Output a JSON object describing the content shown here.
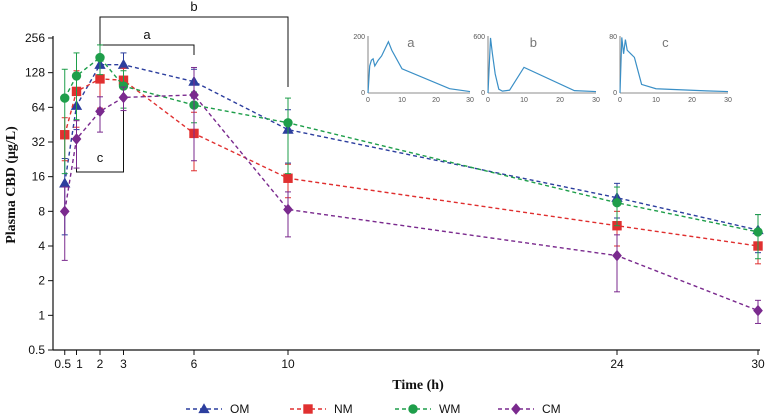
{
  "chart_data": {
    "type": "line",
    "xlabel": "Time (h)",
    "ylabel": "Plasma CBD (μg/L)",
    "yscale": "log2",
    "ylim": [
      0.5,
      256
    ],
    "xlim": [
      0,
      30
    ],
    "x_ticks": [
      0.5,
      1,
      2,
      3,
      6,
      10,
      24,
      30
    ],
    "x_tick_labels": [
      "0.5",
      "1",
      "2",
      "3",
      "6",
      "10",
      "24",
      "30"
    ],
    "y_ticks": [
      0.5,
      1,
      2,
      4,
      8,
      16,
      32,
      64,
      128,
      256
    ],
    "y_tick_labels": [
      "0.5",
      "1",
      "2",
      "4",
      "8",
      "16",
      "32",
      "64",
      "128",
      "256"
    ],
    "legend_position": "bottom",
    "series": [
      {
        "name": "OM",
        "color": "#2c3e9e",
        "marker": "triangle",
        "x": [
          0.5,
          1,
          2,
          3,
          6,
          10,
          24,
          30
        ],
        "y": [
          14,
          66,
          150,
          150,
          107,
          41,
          10.5,
          5.5
        ],
        "err": [
          9,
          25,
          30,
          40,
          30,
          20,
          3.5,
          2
        ]
      },
      {
        "name": "NM",
        "color": "#e03030",
        "marker": "square",
        "x": [
          0.5,
          1,
          2,
          3,
          6,
          10,
          24,
          30
        ],
        "y": [
          37,
          88,
          113,
          110,
          38,
          15.5,
          6,
          4
        ],
        "err": [
          15,
          45,
          50,
          30,
          20,
          5,
          2,
          1.2
        ]
      },
      {
        "name": "WM",
        "color": "#1e9e4a",
        "marker": "circle",
        "x": [
          0.5,
          1,
          2,
          3,
          6,
          10,
          24,
          30
        ],
        "y": [
          77,
          120,
          173,
          98,
          67,
          47,
          9.5,
          5.3
        ],
        "err": [
          60,
          70,
          50,
          35,
          20,
          30,
          3.5,
          2.2
        ]
      },
      {
        "name": "CM",
        "color": "#7a2a8e",
        "marker": "diamond",
        "x": [
          0.5,
          1,
          2,
          3,
          6,
          10,
          24,
          30
        ],
        "y": [
          8,
          34,
          59,
          78,
          82,
          8.3,
          3.3,
          1.1
        ],
        "err": [
          5,
          15,
          20,
          18,
          60,
          3.5,
          1.7,
          0.25
        ]
      }
    ],
    "brackets": [
      {
        "label": "a",
        "x1": 2,
        "x2": 6
      },
      {
        "label": "b",
        "x1": 2,
        "x2": 10
      },
      {
        "label": "c",
        "x1": 1,
        "x2": 3
      }
    ],
    "insets": [
      {
        "label": "a",
        "ylim": [
          0,
          200
        ],
        "y_tick_labels": [
          "200",
          "0"
        ],
        "x_tick_labels": [
          "0",
          "10",
          "20",
          "30"
        ],
        "points": [
          [
            0,
            0
          ],
          [
            0.5,
            95
          ],
          [
            1,
            115
          ],
          [
            1.5,
            120
          ],
          [
            2,
            95
          ],
          [
            3,
            115
          ],
          [
            4,
            130
          ],
          [
            6,
            180
          ],
          [
            7,
            150
          ],
          [
            10,
            85
          ],
          [
            24,
            15
          ],
          [
            30,
            5
          ]
        ]
      },
      {
        "label": "b",
        "ylim": [
          0,
          600
        ],
        "y_tick_labels": [
          "600",
          "0"
        ],
        "x_tick_labels": [
          "0",
          "10",
          "20",
          "30"
        ],
        "points": [
          [
            0,
            0
          ],
          [
            0.7,
            580
          ],
          [
            1.2,
            420
          ],
          [
            2,
            200
          ],
          [
            3,
            40
          ],
          [
            4,
            20
          ],
          [
            6,
            30
          ],
          [
            10,
            270
          ],
          [
            24,
            25
          ],
          [
            30,
            15
          ]
        ]
      },
      {
        "label": "c",
        "ylim": [
          0,
          80
        ],
        "y_tick_labels": [
          "80",
          "0"
        ],
        "x_tick_labels": [
          "0",
          "10",
          "20",
          "30"
        ],
        "points": [
          [
            0,
            0
          ],
          [
            0.5,
            78
          ],
          [
            1,
            55
          ],
          [
            1.5,
            75
          ],
          [
            2,
            60
          ],
          [
            3,
            55
          ],
          [
            4,
            50
          ],
          [
            6,
            12
          ],
          [
            10,
            6
          ],
          [
            24,
            3
          ],
          [
            30,
            2
          ]
        ]
      }
    ]
  }
}
